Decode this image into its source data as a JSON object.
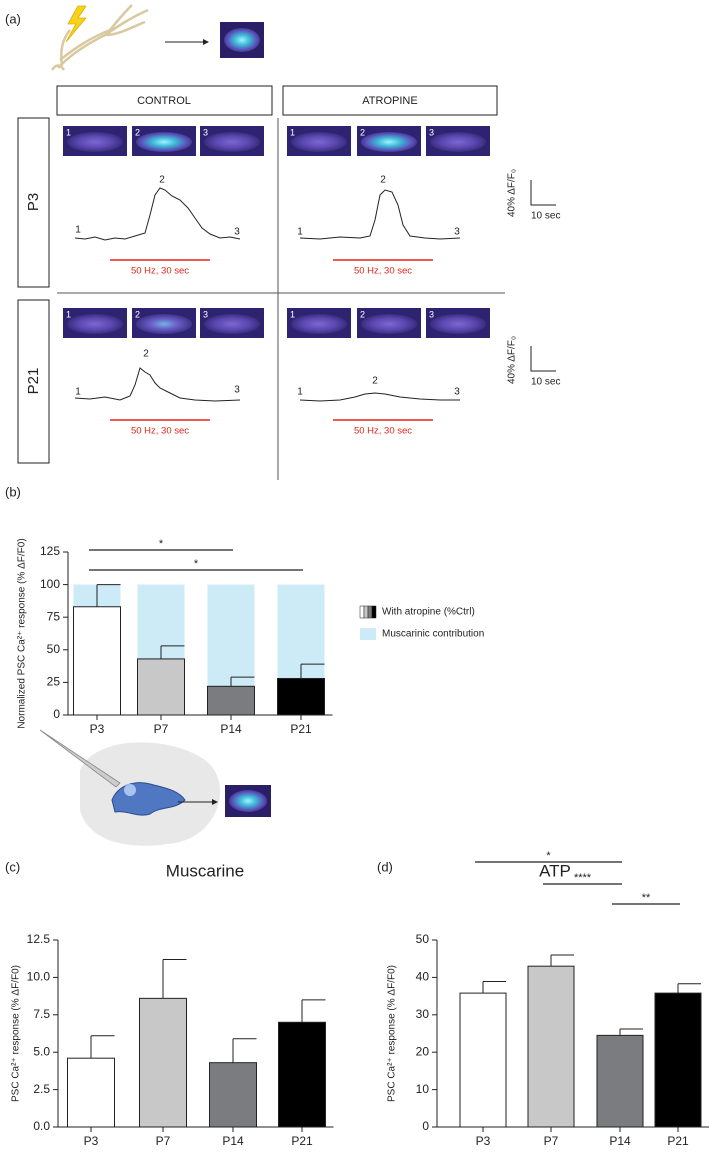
{
  "panel_a": {
    "label": "(a)",
    "headers": [
      "CONTROL",
      "ATROPINE"
    ],
    "rows": [
      "P3",
      "P21"
    ],
    "point_labels": [
      "1",
      "2",
      "3"
    ],
    "stimulus": "50 Hz, 30 sec",
    "scale_y": "40% ΔF/F₀",
    "scale_x": "10 sec"
  },
  "chart_data": [
    {
      "type": "bar",
      "panel": "(b)",
      "ylabel": "Normalized PSC Ca²⁺ response (% ΔF/F0)",
      "categories": [
        "P3",
        "P7",
        "P14",
        "P21"
      ],
      "series": [
        {
          "name": "With atropine (%Ctrl)",
          "colors": [
            "#ffffff",
            "#c8c8c9",
            "#7b7c80",
            "#000000"
          ],
          "values": [
            83,
            43,
            22,
            28
          ],
          "errors": [
            17,
            10,
            7,
            11
          ]
        },
        {
          "name": "Muscarinic contribution",
          "color": "#cdeaf7",
          "values": [
            17,
            57,
            78,
            72
          ]
        }
      ],
      "significance": [
        {
          "pair": [
            "P3",
            "P14"
          ],
          "label": "*"
        },
        {
          "pair": [
            "P3",
            "P21"
          ],
          "label": "*"
        }
      ],
      "ylim": [
        0,
        125
      ],
      "yticks": [
        0,
        25,
        50,
        75,
        100,
        125
      ],
      "legend": "right"
    },
    {
      "type": "bar",
      "panel": "(c)",
      "title": "Muscarine",
      "ylabel": "PSC Ca²⁺ response (% ΔF/F0)",
      "categories": [
        "P3",
        "P7",
        "P14",
        "P21"
      ],
      "colors": [
        "#ffffff",
        "#c8c8c9",
        "#7b7c80",
        "#000000"
      ],
      "values": [
        4.6,
        8.6,
        4.3,
        7.0
      ],
      "errors": [
        1.5,
        2.6,
        1.6,
        1.5
      ],
      "ylim": [
        0,
        12.5
      ],
      "yticks": [
        {
          "value": 0,
          "label": "0.0"
        },
        2.5,
        {
          "value": 5,
          "label": "5.0"
        },
        7.5,
        {
          "value": 10,
          "label": "10.0"
        },
        12.5
      ]
    },
    {
      "type": "bar",
      "panel": "(d)",
      "title": "ATP",
      "ylabel": "PSC Ca²⁺ response (% ΔF/F0)",
      "categories": [
        "P3",
        "P7",
        "P14",
        "P21"
      ],
      "colors": [
        "#ffffff",
        "#c8c8c9",
        "#7b7c80",
        "#000000"
      ],
      "values": [
        35.8,
        43,
        24.5,
        35.8
      ],
      "errors": [
        3.1,
        3,
        1.7,
        2.5
      ],
      "significance": [
        {
          "pair": [
            "P3",
            "P14"
          ],
          "label": "*"
        },
        {
          "pair": [
            "P7",
            "P14"
          ],
          "label": "****"
        },
        {
          "pair": [
            "P14",
            "P21"
          ],
          "label": "**"
        }
      ],
      "ylim": [
        0,
        50
      ],
      "yticks": [
        0,
        10,
        20,
        30,
        40,
        50
      ]
    }
  ]
}
